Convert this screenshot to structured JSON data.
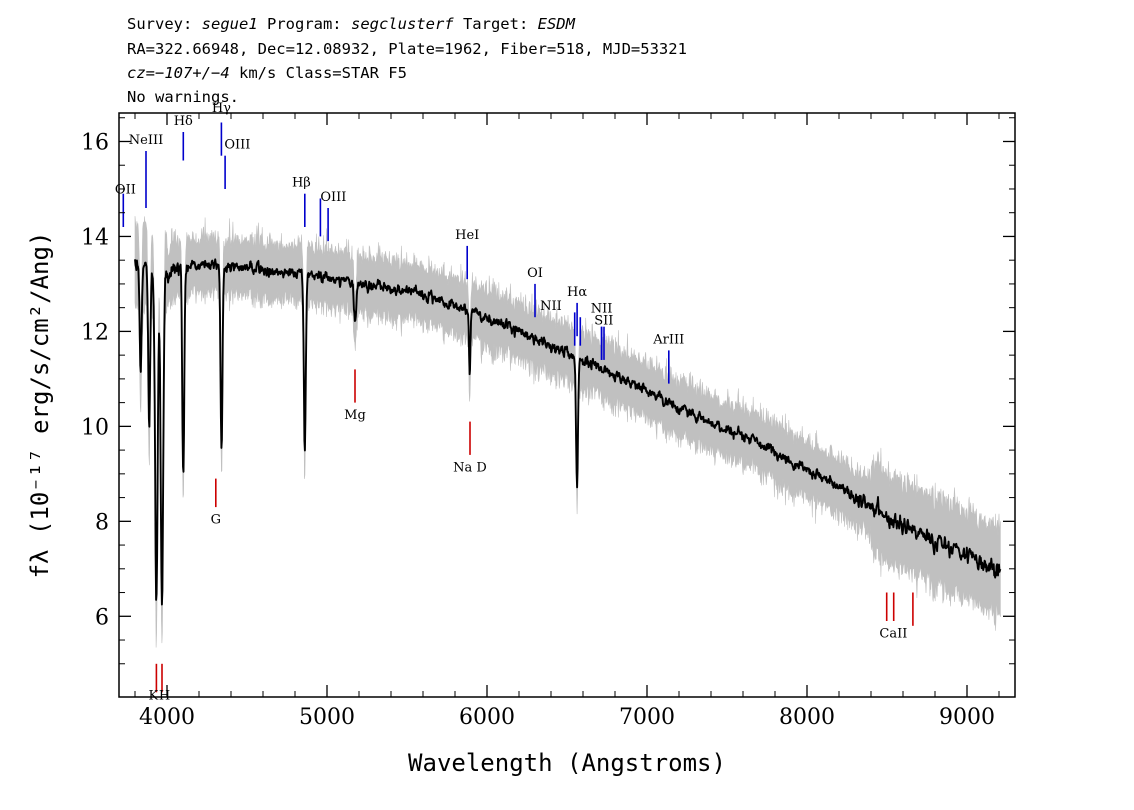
{
  "header": {
    "line1": [
      {
        "t": "Survey: ",
        "i": false
      },
      {
        "t": "segue1",
        "i": true
      },
      {
        "t": " Program: ",
        "i": false
      },
      {
        "t": "segclusterf",
        "i": true
      },
      {
        "t": " Target: ",
        "i": false
      },
      {
        "t": "ESDM",
        "i": true
      }
    ],
    "line2": "RA=322.66948, Dec=12.08932, Plate=1962, Fiber=518, MJD=53321",
    "line3": [
      {
        "t": "cz=−107+/−4",
        "i": true
      },
      {
        "t": " km/s Class=STAR F5",
        "i": false
      }
    ],
    "line4": "No warnings."
  },
  "chart_data": {
    "type": "line",
    "xlabel": "Wavelength (Angstroms)",
    "ylabel": "fλ (10⁻¹⁷ erg/s/cm²/Ang)",
    "xlim": [
      3700,
      9300
    ],
    "ylim": [
      4.3,
      16.6
    ],
    "xticks": [
      4000,
      5000,
      6000,
      7000,
      8000,
      9000
    ],
    "yticks": [
      6,
      8,
      10,
      12,
      14,
      16
    ],
    "colors": {
      "flux": "#000000",
      "error": "#c0c0c0",
      "emission": "#0000cc",
      "absorption": "#cc0000"
    },
    "continuum": [
      [
        3800,
        13.4
      ],
      [
        4000,
        13.3
      ],
      [
        4300,
        13.4
      ],
      [
        4600,
        13.3
      ],
      [
        4900,
        13.2
      ],
      [
        5200,
        13.0
      ],
      [
        5600,
        12.8
      ],
      [
        6000,
        12.3
      ],
      [
        6400,
        11.7
      ],
      [
        6800,
        11.1
      ],
      [
        7200,
        10.4
      ],
      [
        7600,
        9.8
      ],
      [
        8000,
        9.1
      ],
      [
        8400,
        8.3
      ],
      [
        8800,
        7.6
      ],
      [
        9200,
        7.0
      ]
    ],
    "absorption_features": [
      {
        "w": 3835,
        "d": 2.2,
        "s": 6
      },
      {
        "w": 3889,
        "d": 3.4,
        "s": 6
      },
      {
        "w": 3933.7,
        "d": 7.0,
        "s": 8
      },
      {
        "w": 3968.5,
        "d": 7.0,
        "s": 8
      },
      {
        "w": 4101.7,
        "d": 4.4,
        "s": 6
      },
      {
        "w": 4340.5,
        "d": 3.9,
        "s": 6
      },
      {
        "w": 4861.3,
        "d": 3.8,
        "s": 6
      },
      {
        "w": 5175,
        "d": 0.8,
        "s": 7
      },
      {
        "w": 5892,
        "d": 1.4,
        "s": 4
      },
      {
        "w": 6562.8,
        "d": 2.7,
        "s": 6
      }
    ],
    "emission_lines": [
      {
        "label": "OII",
        "w": 3727,
        "top": 14.9,
        "bottom": 14.2,
        "lx": 3740,
        "ly": 14.9
      },
      {
        "label": "NeIII",
        "w": 3869,
        "top": 15.8,
        "bottom": 14.6,
        "lx": 3869,
        "ly": 15.95
      },
      {
        "label": "Hδ",
        "w": 4102,
        "top": 16.2,
        "bottom": 15.6,
        "lx": 4102,
        "ly": 16.35
      },
      {
        "label": "Hγ",
        "w": 4340,
        "top": 16.4,
        "bottom": 15.7,
        "lx": 4340,
        "ly": 16.62
      },
      {
        "label": "OIII",
        "w": 4363,
        "top": 15.7,
        "bottom": 15.0,
        "lx": 4440,
        "ly": 15.85
      },
      {
        "label": "Hβ",
        "w": 4861,
        "top": 14.9,
        "bottom": 14.2,
        "lx": 4840,
        "ly": 15.05
      },
      {
        "label": "OIII",
        "w": 4959,
        "top": 14.8,
        "bottom": 14.0,
        "lx": 5040,
        "ly": 14.75
      },
      {
        "label": "OIII",
        "w": 5007,
        "top": 14.6,
        "bottom": 13.9,
        "lx": null,
        "ly": null
      },
      {
        "label": "HeI",
        "w": 5876,
        "top": 13.8,
        "bottom": 13.1,
        "lx": 5876,
        "ly": 13.95
      },
      {
        "label": "OI",
        "w": 6300,
        "top": 13.0,
        "bottom": 12.3,
        "lx": 6300,
        "ly": 13.15
      },
      {
        "label": "NII",
        "w": 6548,
        "top": 12.4,
        "bottom": 11.7,
        "lx": 6400,
        "ly": 12.45
      },
      {
        "label": "Hα",
        "w": 6563,
        "top": 12.6,
        "bottom": 11.9,
        "lx": 6563,
        "ly": 12.75
      },
      {
        "label": "NII",
        "w": 6583,
        "top": 12.3,
        "bottom": 11.7,
        "lx": null,
        "ly": null
      },
      {
        "label": "NII",
        "w": 6716,
        "top": 12.1,
        "bottom": 11.4,
        "lx": 6716,
        "ly": 12.4
      },
      {
        "label": "SII",
        "w": 6716,
        "top": 12.1,
        "bottom": 11.4,
        "lx": 6730,
        "ly": 12.15
      },
      {
        "label": "SII",
        "w": 6731,
        "top": 12.1,
        "bottom": 11.4,
        "lx": null,
        "ly": null
      },
      {
        "label": "ArIII",
        "w": 7136,
        "top": 11.6,
        "bottom": 10.9,
        "lx": 7136,
        "ly": 11.75
      }
    ],
    "absorption_lines": [
      {
        "label": "K",
        "w": 3934,
        "top": 5.0,
        "bottom": 4.4,
        "lx": 3915,
        "ly": 4.25
      },
      {
        "label": "H",
        "w": 3969,
        "top": 5.0,
        "bottom": 4.4,
        "lx": 3985,
        "ly": 4.25
      },
      {
        "label": "G",
        "w": 4305,
        "top": 8.9,
        "bottom": 8.3,
        "lx": 4305,
        "ly": 7.95
      },
      {
        "label": "Mg",
        "w": 5175,
        "top": 11.2,
        "bottom": 10.5,
        "lx": 5175,
        "ly": 10.15
      },
      {
        "label": "Na D",
        "w": 5894,
        "top": 10.1,
        "bottom": 9.4,
        "lx": 5894,
        "ly": 9.05
      },
      {
        "label": "CaII",
        "w": 8498,
        "top": 6.5,
        "bottom": 5.9,
        "lx": 8540,
        "ly": 5.55
      },
      {
        "label": "CaII",
        "w": 8542,
        "top": 6.5,
        "bottom": 5.9,
        "lx": null,
        "ly": null
      },
      {
        "label": "CaII",
        "w": 8662,
        "top": 6.5,
        "bottom": 5.8,
        "lx": null,
        "ly": null
      }
    ]
  }
}
